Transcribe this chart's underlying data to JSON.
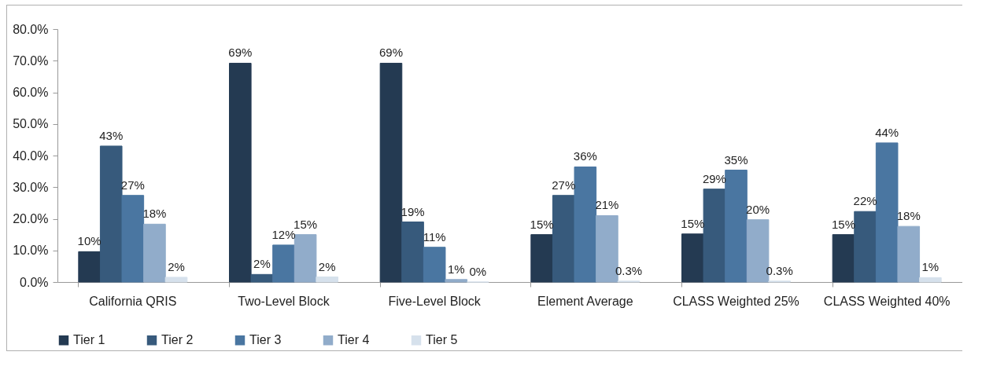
{
  "chart_data": {
    "type": "bar",
    "categories": [
      "California QRIS",
      "Two-Level Block",
      "Five-Level Block",
      "Element Average",
      "CLASS Weighted 25%",
      "CLASS Weighted 40%"
    ],
    "series": [
      {
        "name": "Tier 1",
        "color": "#243a52",
        "values": [
          9.6,
          69.2,
          69.2,
          15.0,
          15.2,
          15.0
        ],
        "value_labels": [
          "10%",
          "69%",
          "69%",
          "15%",
          "15%",
          "15%"
        ]
      },
      {
        "name": "Tier 2",
        "color": "#375a7c",
        "values": [
          43.0,
          2.4,
          19.0,
          27.4,
          29.4,
          22.3
        ],
        "value_labels": [
          "43%",
          "2%",
          "19%",
          "27%",
          "29%",
          "22%"
        ]
      },
      {
        "name": "Tier 3",
        "color": "#4a76a1",
        "values": [
          27.4,
          11.7,
          11.0,
          36.4,
          35.4,
          44.0
        ],
        "value_labels": [
          "27%",
          "12%",
          "11%",
          "36%",
          "35%",
          "44%"
        ]
      },
      {
        "name": "Tier 4",
        "color": "#91acca",
        "values": [
          18.3,
          15.0,
          0.8,
          21.0,
          19.7,
          17.6
        ],
        "value_labels": [
          "18%",
          "15%",
          "1%",
          "21%",
          "20%",
          "18%"
        ]
      },
      {
        "name": "Tier 5",
        "color": "#d6e1ec",
        "values": [
          1.5,
          1.6,
          0.0,
          0.3,
          0.3,
          1.4
        ],
        "value_labels": [
          "2%",
          "2%",
          "0%",
          "0.3%",
          "0.3%",
          "1%"
        ]
      }
    ],
    "ylim": [
      0,
      80
    ],
    "yticks": [
      {
        "value": 0,
        "label": "0.0%"
      },
      {
        "value": 10,
        "label": "10.0%"
      },
      {
        "value": 20,
        "label": "20.0%"
      },
      {
        "value": 30,
        "label": "30.0%"
      },
      {
        "value": 40,
        "label": "40.0%"
      },
      {
        "value": 50,
        "label": "50.0%"
      },
      {
        "value": 60,
        "label": "60.0%"
      },
      {
        "value": 70,
        "label": "70.0%"
      },
      {
        "value": 80,
        "label": "80.0%"
      }
    ],
    "legend": "bottom",
    "grid": false
  }
}
